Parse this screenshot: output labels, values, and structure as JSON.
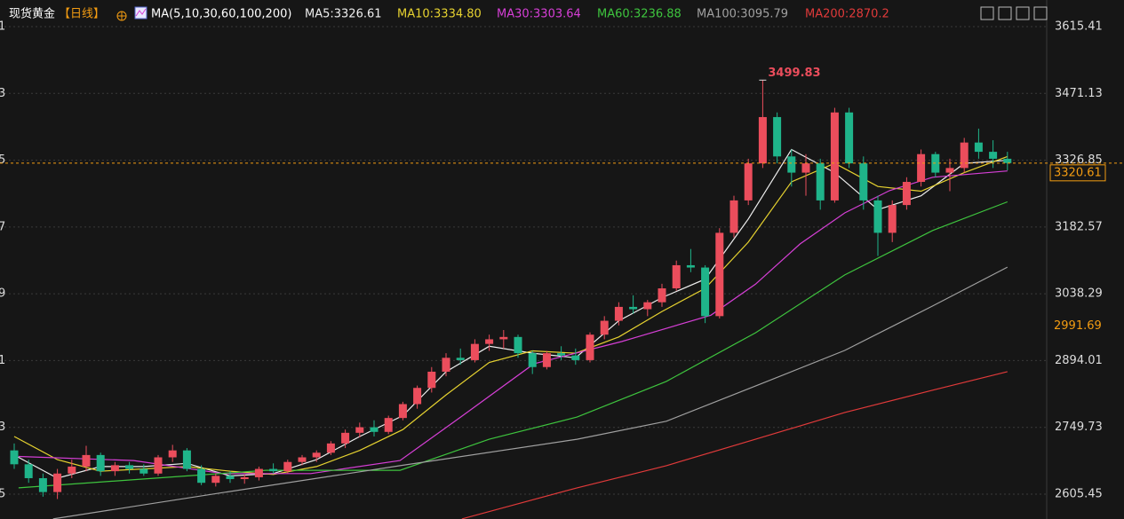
{
  "chart_data": {
    "type": "candlestick",
    "title": "现货黄金",
    "period": "【日线】",
    "ma_title": "MA(5,10,30,60,100,200)",
    "ylim": [
      2551.8,
      3672.9
    ],
    "yticks": [
      3615.41,
      3471.13,
      3326.85,
      3182.57,
      3038.29,
      2894.01,
      2749.73,
      2605.45
    ],
    "left_labels": [
      "1",
      "3",
      "5",
      "7",
      "9",
      "1",
      "3",
      "5"
    ],
    "grid": true,
    "up_color": "#eb4d5c",
    "down_color": "#1fb48a",
    "last_price": 3320.61,
    "marker_price": 2991.69,
    "high_annotation": 3499.83,
    "high_index": 52,
    "open": [
      2700,
      2670,
      2640,
      2610,
      2650,
      2665,
      2690,
      2655,
      2668,
      2660,
      2650,
      2685,
      2700,
      2660,
      2630,
      2645,
      2638,
      2642,
      2660,
      2655,
      2675,
      2685,
      2695,
      2715,
      2738,
      2750,
      2740,
      2770,
      2800,
      2835,
      2870,
      2900,
      2895,
      2930,
      2940,
      2945,
      2910,
      2880,
      2910,
      2905,
      2895,
      2950,
      2980,
      3010,
      3005,
      3020,
      3050,
      3100,
      3095,
      2990,
      3170,
      3240,
      3320,
      3420,
      3335,
      3300,
      3320,
      3240,
      3430,
      3320,
      3240,
      3170,
      3230,
      3280,
      3340,
      3300,
      3310,
      3365,
      3345,
      3330
    ],
    "high": [
      2715,
      2680,
      2650,
      2660,
      2680,
      2710,
      2695,
      2675,
      2675,
      2670,
      2690,
      2712,
      2705,
      2668,
      2650,
      2655,
      2648,
      2665,
      2672,
      2680,
      2690,
      2700,
      2720,
      2745,
      2760,
      2765,
      2775,
      2805,
      2840,
      2880,
      2910,
      2920,
      2940,
      2950,
      2960,
      2950,
      2915,
      2915,
      2925,
      2920,
      2955,
      2990,
      3020,
      3035,
      3025,
      3060,
      3110,
      3135,
      3100,
      3180,
      3250,
      3330,
      3499.83,
      3430,
      3350,
      3340,
      3330,
      3440,
      3440,
      3335,
      3250,
      3240,
      3290,
      3350,
      3345,
      3330,
      3375,
      3395,
      3370,
      3345
    ],
    "low": [
      2660,
      2630,
      2600,
      2595,
      2640,
      2655,
      2645,
      2645,
      2650,
      2645,
      2645,
      2675,
      2655,
      2625,
      2622,
      2630,
      2628,
      2635,
      2650,
      2650,
      2668,
      2675,
      2690,
      2705,
      2728,
      2730,
      2735,
      2765,
      2790,
      2825,
      2860,
      2885,
      2890,
      2915,
      2920,
      2900,
      2865,
      2875,
      2895,
      2885,
      2890,
      2940,
      2970,
      2995,
      2990,
      3010,
      3045,
      3085,
      2975,
      2985,
      3160,
      3230,
      3310,
      3320,
      3270,
      3250,
      3220,
      3235,
      3310,
      3220,
      3120,
      3150,
      3220,
      3270,
      3290,
      3260,
      3300,
      3330,
      3310,
      3305
    ],
    "close": [
      2670,
      2640,
      2610,
      2650,
      2665,
      2690,
      2655,
      2668,
      2660,
      2650,
      2685,
      2700,
      2660,
      2630,
      2645,
      2638,
      2642,
      2660,
      2655,
      2675,
      2685,
      2695,
      2715,
      2738,
      2750,
      2740,
      2770,
      2800,
      2835,
      2870,
      2900,
      2895,
      2930,
      2940,
      2945,
      2910,
      2880,
      2910,
      2905,
      2895,
      2950,
      2980,
      3010,
      3005,
      3020,
      3050,
      3100,
      3095,
      2990,
      3170,
      3240,
      3320,
      3420,
      3335,
      3300,
      3320,
      3240,
      3430,
      3320,
      3240,
      3170,
      3230,
      3280,
      3340,
      3300,
      3310,
      3365,
      3345,
      3330,
      3320.61
    ],
    "series": [
      {
        "name": "MA5:3326.61",
        "color": "#eeeeee",
        "x": [
          0,
          3,
          6,
          9,
          12,
          15,
          18,
          21,
          24,
          27,
          30,
          33,
          36,
          39,
          42,
          45,
          48,
          51,
          54,
          57,
          60,
          63,
          66,
          69
        ],
        "values": [
          2690,
          2640,
          2665,
          2665,
          2672,
          2645,
          2650,
          2680,
          2730,
          2775,
          2870,
          2925,
          2910,
          2900,
          2980,
          3030,
          3070,
          3200,
          3350,
          3300,
          3220,
          3250,
          3320,
          3326.61
        ]
      },
      {
        "name": "MA10:3334.80",
        "color": "#e6d230",
        "x": [
          0,
          3,
          6,
          9,
          12,
          15,
          18,
          21,
          24,
          27,
          30,
          33,
          36,
          39,
          42,
          45,
          48,
          51,
          54,
          57,
          60,
          63,
          66,
          69
        ],
        "values": [
          2730,
          2680,
          2655,
          2660,
          2665,
          2655,
          2648,
          2665,
          2700,
          2745,
          2820,
          2890,
          2915,
          2910,
          2945,
          3000,
          3050,
          3150,
          3280,
          3320,
          3270,
          3260,
          3300,
          3334.8
        ]
      },
      {
        "name": "MA30:3303.64",
        "color": "#d63fd6",
        "x": [
          0.3,
          8.3,
          14.5,
          20.6,
          26.8,
          31.1,
          36.1,
          42.2,
          48.4,
          51.5,
          54.6,
          57.7,
          60.8,
          63.8,
          69
        ],
        "values": [
          2687,
          2678,
          2650,
          2650,
          2678,
          2774,
          2887,
          2935,
          2992,
          3059,
          3146,
          3213,
          3261,
          3290,
          3303.64
        ]
      },
      {
        "name": "MA60:3236.88",
        "color": "#3ec43e",
        "x": [
          0.3,
          17.5,
          26.8,
          33,
          39.1,
          45.3,
          51.5,
          57.7,
          63.8,
          69
        ],
        "values": [
          2619,
          2657,
          2657,
          2724,
          2772,
          2849,
          2954,
          3079,
          3175,
          3236.88
        ]
      },
      {
        "name": "MA100:3095.79",
        "color": "#a0a0a0",
        "x": [
          2.7,
          14.5,
          26.8,
          39.1,
          45.3,
          51.5,
          57.7,
          63.8,
          69
        ],
        "values": [
          2552,
          2609,
          2667,
          2724,
          2763,
          2839,
          2916,
          3012,
          3095.79
        ]
      },
      {
        "name": "MA200:2870.2",
        "color": "#e03a3a",
        "x": [
          31.1,
          39.1,
          45.3,
          51.5,
          57.7,
          63.8,
          69
        ],
        "values": [
          2552,
          2619,
          2667,
          2724,
          2782,
          2830,
          2870.2
        ]
      }
    ]
  }
}
